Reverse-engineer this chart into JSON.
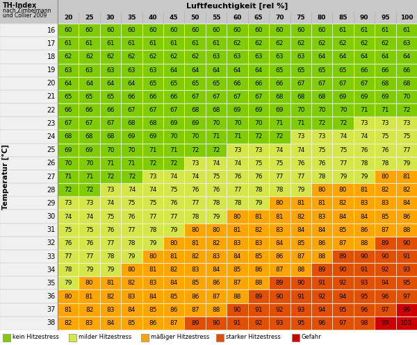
{
  "title_main": "TH-Index",
  "title_sub1": "nach Zimbelmann",
  "title_sub2": "und Collier 2009",
  "col_header": "Luftfeuchtigkeit [rel %]",
  "row_header": "Temperatur [°C]",
  "humidity_cols": [
    20,
    25,
    30,
    35,
    40,
    45,
    50,
    55,
    60,
    65,
    70,
    75,
    80,
    85,
    90,
    95,
    100
  ],
  "temp_rows": [
    16,
    17,
    18,
    19,
    20,
    21,
    22,
    23,
    24,
    25,
    26,
    27,
    28,
    29,
    30,
    31,
    32,
    33,
    34,
    35,
    36,
    37,
    38
  ],
  "thi_values": [
    [
      60,
      60,
      60,
      60,
      60,
      60,
      60,
      60,
      60,
      60,
      60,
      60,
      60,
      61,
      61,
      61,
      61
    ],
    [
      61,
      61,
      61,
      61,
      61,
      61,
      61,
      61,
      62,
      62,
      62,
      62,
      62,
      62,
      62,
      62,
      63
    ],
    [
      62,
      62,
      62,
      62,
      62,
      62,
      62,
      63,
      63,
      63,
      63,
      63,
      64,
      64,
      64,
      64,
      64
    ],
    [
      63,
      63,
      63,
      63,
      63,
      64,
      64,
      64,
      64,
      64,
      65,
      65,
      65,
      65,
      66,
      66,
      66
    ],
    [
      64,
      64,
      64,
      64,
      65,
      65,
      65,
      65,
      66,
      66,
      66,
      67,
      67,
      67,
      67,
      68,
      68
    ],
    [
      65,
      65,
      65,
      66,
      66,
      66,
      67,
      67,
      67,
      67,
      68,
      68,
      68,
      69,
      69,
      69,
      70
    ],
    [
      66,
      66,
      66,
      67,
      67,
      67,
      68,
      68,
      69,
      69,
      69,
      70,
      70,
      70,
      71,
      71,
      72
    ],
    [
      67,
      67,
      67,
      68,
      68,
      69,
      69,
      70,
      70,
      70,
      71,
      71,
      72,
      72,
      73,
      73,
      73
    ],
    [
      68,
      68,
      68,
      69,
      69,
      70,
      70,
      71,
      71,
      72,
      72,
      73,
      73,
      74,
      74,
      75,
      75
    ],
    [
      69,
      69,
      70,
      70,
      71,
      71,
      72,
      72,
      73,
      73,
      74,
      74,
      75,
      75,
      76,
      76,
      77
    ],
    [
      70,
      70,
      71,
      71,
      72,
      72,
      73,
      74,
      74,
      75,
      75,
      76,
      76,
      77,
      78,
      78,
      79
    ],
    [
      71,
      71,
      72,
      72,
      73,
      74,
      74,
      75,
      76,
      76,
      77,
      77,
      78,
      79,
      79,
      80,
      81
    ],
    [
      72,
      72,
      73,
      74,
      74,
      75,
      76,
      76,
      77,
      78,
      78,
      79,
      80,
      80,
      81,
      82,
      82
    ],
    [
      73,
      73,
      74,
      75,
      75,
      76,
      77,
      78,
      78,
      79,
      80,
      81,
      81,
      82,
      83,
      83,
      84
    ],
    [
      74,
      74,
      75,
      76,
      77,
      77,
      78,
      79,
      80,
      81,
      81,
      82,
      83,
      84,
      84,
      85,
      86
    ],
    [
      75,
      75,
      76,
      77,
      78,
      79,
      80,
      80,
      81,
      82,
      83,
      84,
      84,
      85,
      86,
      87,
      88
    ],
    [
      76,
      76,
      77,
      78,
      79,
      80,
      81,
      82,
      83,
      83,
      84,
      85,
      86,
      87,
      88,
      89,
      90
    ],
    [
      77,
      77,
      78,
      79,
      80,
      81,
      82,
      83,
      84,
      85,
      86,
      87,
      88,
      89,
      90,
      90,
      91
    ],
    [
      78,
      79,
      79,
      80,
      81,
      82,
      83,
      84,
      85,
      86,
      87,
      88,
      89,
      90,
      91,
      92,
      93
    ],
    [
      79,
      80,
      81,
      82,
      83,
      84,
      85,
      86,
      87,
      88,
      89,
      90,
      91,
      92,
      93,
      94,
      95
    ],
    [
      80,
      81,
      82,
      83,
      84,
      85,
      86,
      87,
      88,
      89,
      90,
      91,
      92,
      94,
      95,
      96,
      97
    ],
    [
      81,
      82,
      83,
      84,
      85,
      86,
      87,
      88,
      90,
      91,
      92,
      93,
      94,
      95,
      96,
      97,
      99
    ],
    [
      82,
      83,
      84,
      85,
      86,
      87,
      89,
      90,
      91,
      92,
      93,
      95,
      96,
      97,
      98,
      99,
      100
    ]
  ],
  "color_kein": "#80cc00",
  "color_mild": "#d4e64a",
  "color_moderate": "#ffa500",
  "color_strong": "#e05000",
  "color_danger": "#cc0000",
  "header_bg": "#c8c8c8",
  "cell_border": "#ffffff",
  "left_label_bg": "#f0f0f0",
  "legend_items": [
    {
      "label": "kein Hitzestress",
      "color": "#80cc00"
    },
    {
      "label": "milder Hitzestress",
      "color": "#d4e64a"
    },
    {
      "label": "mäßiger Hitzestress",
      "color": "#ffa500"
    },
    {
      "label": "starker Hitzestress",
      "color": "#e05000"
    },
    {
      "label": "Gefahr",
      "color": "#cc0000"
    }
  ]
}
